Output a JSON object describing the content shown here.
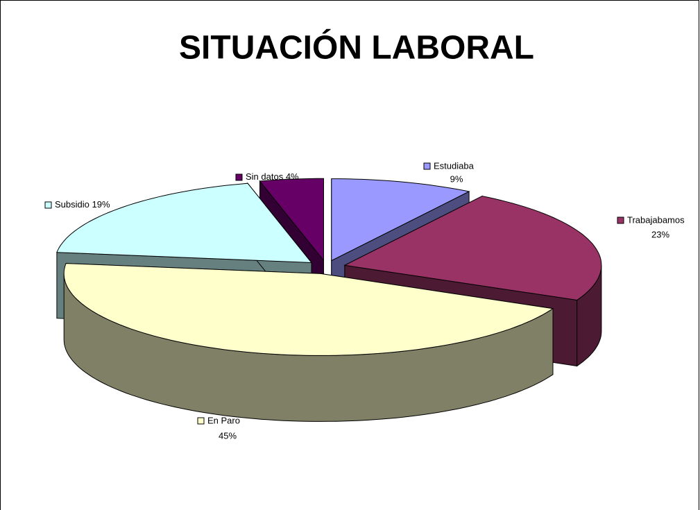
{
  "chart_data": {
    "type": "pie3d",
    "title": "SITUACIÓN LABORAL",
    "categories": [
      "Estudiaba",
      "Trabajabamos",
      "En Paro",
      "Subsidio",
      "Sin datos"
    ],
    "values": [
      9,
      23,
      45,
      19,
      4
    ],
    "value_labels": [
      "9%",
      "23%",
      "45%",
      "19%",
      "4%"
    ],
    "colors": [
      "#9999ff",
      "#993366",
      "#ffffcc",
      "#ccffff",
      "#660066"
    ]
  }
}
